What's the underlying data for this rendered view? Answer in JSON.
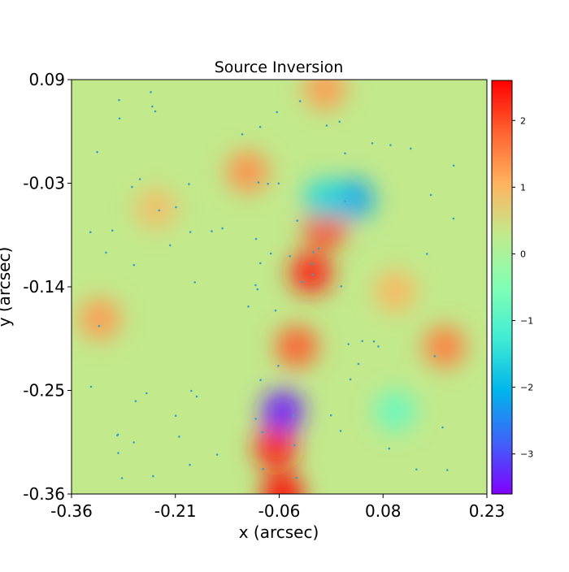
{
  "chart_data": {
    "type": "heatmap",
    "title": "Source Inversion",
    "xlabel": "x (arcsec)",
    "ylabel": "y (arcsec)",
    "xlim": [
      -0.36,
      0.23
    ],
    "ylim": [
      -0.36,
      0.09
    ],
    "xticks": [
      "-0.36",
      "-0.21",
      "-0.06",
      "0.08",
      "0.23"
    ],
    "yticks": [
      "0.09",
      "-0.03",
      "-0.14",
      "-0.25",
      "-0.36"
    ],
    "colorbar": {
      "colormap": "rainbow",
      "vmin": -3.6,
      "vmax": 2.6,
      "ticks": [
        2,
        1,
        0,
        -1,
        -2,
        -3
      ]
    },
    "background_value": 0.3,
    "features": [
      {
        "x": -0.02,
        "y": -0.12,
        "value": 2.4
      },
      {
        "x": 0.0,
        "y": -0.07,
        "value": 2.2
      },
      {
        "x": -0.07,
        "y": -0.31,
        "value": 2.4
      },
      {
        "x": -0.04,
        "y": -0.2,
        "value": 1.9
      },
      {
        "x": -0.06,
        "y": -0.27,
        "value": -3.4
      },
      {
        "x": 0.04,
        "y": -0.04,
        "value": -2.2
      },
      {
        "x": 0.0,
        "y": -0.04,
        "value": -1.6
      },
      {
        "x": 0.1,
        "y": -0.27,
        "value": -0.8
      },
      {
        "x": 0.17,
        "y": -0.2,
        "value": 1.6
      },
      {
        "x": -0.32,
        "y": -0.17,
        "value": 1.3
      },
      {
        "x": 0.0,
        "y": 0.08,
        "value": 1.3
      },
      {
        "x": -0.11,
        "y": -0.01,
        "value": 1.4
      },
      {
        "x": -0.06,
        "y": -0.36,
        "value": 2.6
      },
      {
        "x": -0.24,
        "y": -0.05,
        "value": 0.9
      },
      {
        "x": 0.1,
        "y": -0.14,
        "value": 1.0
      }
    ]
  }
}
